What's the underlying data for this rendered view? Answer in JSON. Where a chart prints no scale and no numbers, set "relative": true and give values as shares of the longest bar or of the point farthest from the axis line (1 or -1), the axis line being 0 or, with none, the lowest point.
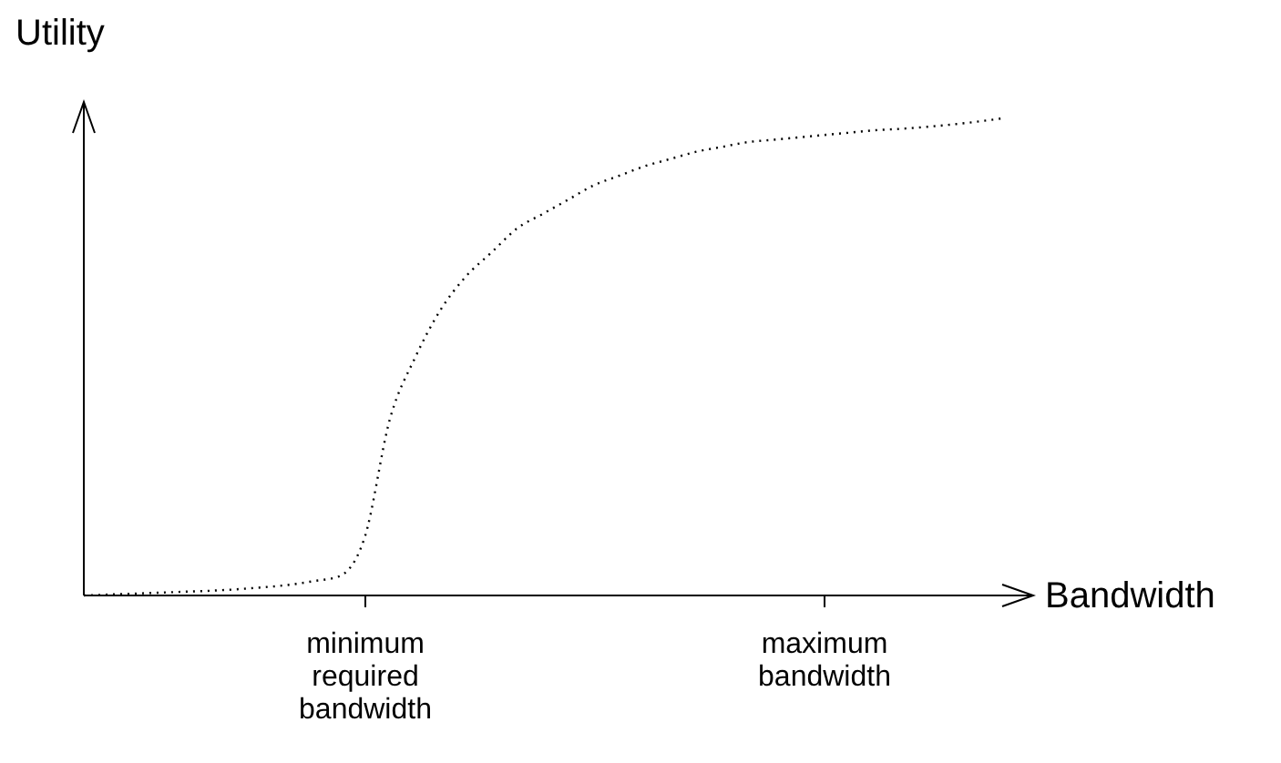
{
  "chart_data": {
    "type": "line",
    "relative": true,
    "xlabel": "Bandwidth",
    "ylabel": "Utility",
    "line_style": "dotted",
    "categories": [
      null,
      null,
      null,
      null,
      null,
      null,
      null,
      null,
      null,
      null,
      null,
      "minimum required bandwidth",
      null,
      null,
      null,
      null,
      null,
      null,
      null,
      null,
      null,
      null,
      null,
      null,
      null,
      null,
      null,
      null,
      null,
      "maximum bandwidth",
      null,
      null,
      null,
      null,
      null,
      null,
      null
    ],
    "series": [
      {
        "color": "#000000",
        "values": [
          0,
          0.002,
          0.004,
          0.006,
          0.008,
          0.01,
          0.013,
          0.017,
          0.022,
          0.03,
          0.04,
          0.12,
          0.37,
          0.5,
          0.6,
          0.67,
          0.72,
          0.77,
          0.8,
          0.83,
          0.86,
          0.88,
          0.9,
          0.915,
          0.93,
          0.94,
          0.95,
          0.955,
          0.96,
          0.965,
          0.97,
          0.975,
          0.978,
          0.982,
          0.987,
          0.993,
          1
        ]
      }
    ]
  }
}
